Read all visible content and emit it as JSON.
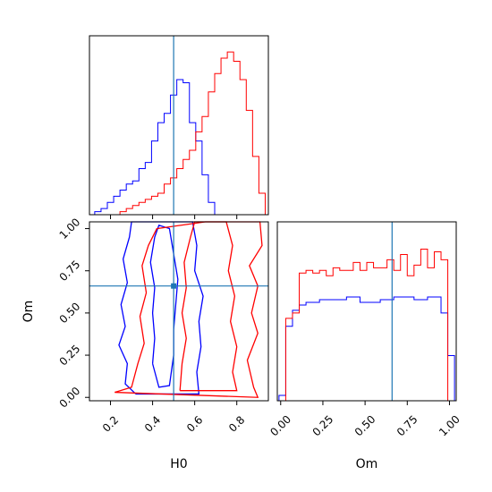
{
  "chart_data": {
    "type": "corner",
    "colors": {
      "series_a": "#0000ff",
      "series_b": "#ff0000",
      "truth": "#1f77b4"
    },
    "axes": {
      "H0": {
        "label": "H0",
        "range": [
          0.1,
          0.95
        ],
        "ticks": [
          0.2,
          0.4,
          0.6,
          0.8
        ],
        "tick_labels": [
          "0.2",
          "0.4",
          "0.6",
          "0.8"
        ],
        "truth": 0.5
      },
      "Om": {
        "label": "Om",
        "range": [
          -0.02,
          1.04
        ],
        "ticks": [
          0.0,
          0.25,
          0.5,
          0.75,
          1.0
        ],
        "tick_labels": [
          "0.00",
          "0.25",
          "0.50",
          "0.75",
          "1.00"
        ],
        "truth": 0.66
      }
    },
    "hist_H0": {
      "bin_edges": [
        0.125,
        0.155,
        0.185,
        0.215,
        0.245,
        0.275,
        0.305,
        0.335,
        0.365,
        0.395,
        0.425,
        0.455,
        0.485,
        0.515,
        0.545,
        0.575,
        0.605,
        0.635,
        0.665,
        0.695,
        0.725,
        0.755,
        0.785,
        0.815,
        0.845,
        0.875,
        0.905,
        0.935
      ],
      "series": [
        {
          "color": "blue",
          "values": [
            1,
            2,
            4,
            6,
            8,
            10,
            11,
            15,
            17,
            24,
            30,
            33,
            39,
            44,
            43,
            30,
            24,
            13,
            4,
            0,
            0,
            0,
            0,
            0,
            0,
            0,
            0
          ]
        },
        {
          "color": "red",
          "values": [
            0,
            0,
            0,
            0,
            1,
            2,
            3,
            4,
            5,
            6,
            7,
            10,
            12,
            15,
            18,
            21,
            27,
            32,
            40,
            46,
            51,
            53,
            50,
            44,
            34,
            19,
            7
          ]
        }
      ]
    },
    "hist_Om": {
      "bin_edges": [
        -0.01,
        0.03,
        0.07,
        0.11,
        0.15,
        0.19,
        0.23,
        0.27,
        0.31,
        0.35,
        0.39,
        0.43,
        0.47,
        0.51,
        0.55,
        0.59,
        0.63,
        0.67,
        0.71,
        0.75,
        0.79,
        0.83,
        0.87,
        0.91,
        0.95,
        0.99,
        1.03
      ],
      "series": [
        {
          "color": "blue",
          "values": [
            2,
            28,
            34,
            36,
            37,
            37,
            38,
            38,
            38,
            38,
            39,
            39,
            37,
            37,
            37,
            38,
            38,
            39,
            39,
            39,
            38,
            38,
            39,
            39,
            33,
            17
          ]
        },
        {
          "color": "red",
          "values": [
            0,
            31,
            33,
            48,
            49,
            48,
            49,
            47,
            50,
            49,
            49,
            52,
            49,
            52,
            50,
            50,
            53,
            49,
            55,
            47,
            51,
            57,
            50,
            56,
            53,
            0
          ]
        }
      ]
    },
    "contours": [
      {
        "color": "blue",
        "level": "inner",
        "points": [
          [
            0.4,
            0.2
          ],
          [
            0.41,
            0.35
          ],
          [
            0.4,
            0.5
          ],
          [
            0.41,
            0.65
          ],
          [
            0.39,
            0.8
          ],
          [
            0.41,
            0.95
          ],
          [
            0.43,
            1.02
          ],
          [
            0.48,
            1.0
          ],
          [
            0.5,
            0.85
          ],
          [
            0.52,
            0.7
          ],
          [
            0.51,
            0.55
          ],
          [
            0.5,
            0.4
          ],
          [
            0.5,
            0.25
          ],
          [
            0.48,
            0.07
          ],
          [
            0.43,
            0.06
          ],
          [
            0.4,
            0.2
          ]
        ]
      },
      {
        "color": "blue",
        "level": "outer",
        "points": [
          [
            0.32,
            0.02
          ],
          [
            0.27,
            0.08
          ],
          [
            0.28,
            0.2
          ],
          [
            0.24,
            0.31
          ],
          [
            0.27,
            0.42
          ],
          [
            0.25,
            0.55
          ],
          [
            0.28,
            0.68
          ],
          [
            0.26,
            0.82
          ],
          [
            0.29,
            0.95
          ],
          [
            0.3,
            1.04
          ],
          [
            0.59,
            1.04
          ],
          [
            0.61,
            0.9
          ],
          [
            0.6,
            0.75
          ],
          [
            0.64,
            0.6
          ],
          [
            0.62,
            0.45
          ],
          [
            0.63,
            0.3
          ],
          [
            0.61,
            0.15
          ],
          [
            0.62,
            0.02
          ],
          [
            0.32,
            0.02
          ]
        ]
      },
      {
        "color": "red",
        "level": "inner",
        "points": [
          [
            0.53,
            0.04
          ],
          [
            0.54,
            0.2
          ],
          [
            0.56,
            0.35
          ],
          [
            0.54,
            0.5
          ],
          [
            0.56,
            0.65
          ],
          [
            0.55,
            0.8
          ],
          [
            0.58,
            0.95
          ],
          [
            0.6,
            1.04
          ],
          [
            0.75,
            1.04
          ],
          [
            0.78,
            0.9
          ],
          [
            0.76,
            0.75
          ],
          [
            0.79,
            0.6
          ],
          [
            0.77,
            0.45
          ],
          [
            0.8,
            0.3
          ],
          [
            0.78,
            0.15
          ],
          [
            0.8,
            0.04
          ],
          [
            0.53,
            0.04
          ]
        ]
      },
      {
        "color": "red",
        "level": "outer",
        "points": [
          [
            0.22,
            0.03
          ],
          [
            0.3,
            0.06
          ],
          [
            0.33,
            0.2
          ],
          [
            0.36,
            0.32
          ],
          [
            0.34,
            0.48
          ],
          [
            0.37,
            0.62
          ],
          [
            0.35,
            0.78
          ],
          [
            0.38,
            0.9
          ],
          [
            0.42,
            1.0
          ],
          [
            0.65,
            1.04
          ],
          [
            0.91,
            1.04
          ],
          [
            0.92,
            0.9
          ],
          [
            0.86,
            0.78
          ],
          [
            0.9,
            0.66
          ],
          [
            0.87,
            0.5
          ],
          [
            0.9,
            0.38
          ],
          [
            0.85,
            0.22
          ],
          [
            0.88,
            0.06
          ],
          [
            0.9,
            0.0
          ],
          [
            0.22,
            0.03
          ]
        ]
      }
    ]
  }
}
